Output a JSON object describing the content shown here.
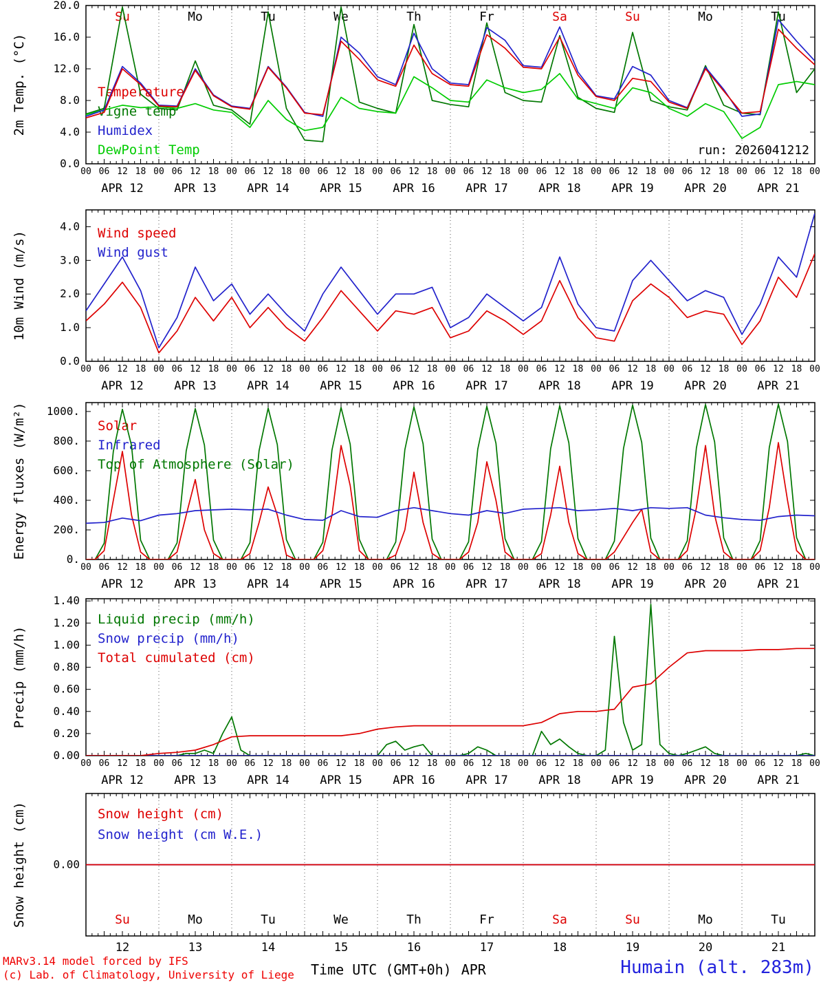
{
  "meta": {
    "run_label": "run: 2026041212"
  },
  "x_axis": {
    "hour_cycle": [
      "00",
      "06",
      "12",
      "18"
    ],
    "dates": [
      "APR 12",
      "APR 13",
      "APR 14",
      "APR 15",
      "APR 16",
      "APR 17",
      "APR 18",
      "APR 19",
      "APR 20",
      "APR 21"
    ],
    "day_numbers": [
      "12",
      "13",
      "14",
      "15",
      "16",
      "17",
      "18",
      "19",
      "20",
      "21"
    ]
  },
  "day_labels": [
    {
      "text": "Su",
      "color": "#dd0000"
    },
    {
      "text": "Mo",
      "color": "#000000"
    },
    {
      "text": "Tu",
      "color": "#000000"
    },
    {
      "text": "We",
      "color": "#000000"
    },
    {
      "text": "Th",
      "color": "#000000"
    },
    {
      "text": "Fr",
      "color": "#000000"
    },
    {
      "text": "Sa",
      "color": "#dd0000"
    },
    {
      "text": "Su",
      "color": "#dd0000"
    },
    {
      "text": "Mo",
      "color": "#000000"
    },
    {
      "text": "Tu",
      "color": "#000000"
    }
  ],
  "footer": {
    "left1": "MARv3.14 model forced by IFS",
    "left2": "(c) Lab. of Climatology, University of Liege",
    "center": "Time UTC (GMT+0h)",
    "center_apr": "APR",
    "station": "Humain (alt. 283m)"
  },
  "chart_data": [
    {
      "type": "line",
      "ylabel": "2m Temp. (°C)",
      "ylim": [
        0,
        20
      ],
      "xlim": [
        0,
        240
      ],
      "yticks": [
        0,
        4,
        8,
        12,
        16,
        20
      ],
      "ytick_labels": [
        "0.0",
        "4.0",
        "8.0",
        "12.0",
        "16.0",
        "20.0"
      ],
      "legend": [
        {
          "label": "Temperature",
          "color": "#dd0000"
        },
        {
          "label": "Vigne temp",
          "color": "#007700"
        },
        {
          "label": "Humidex",
          "color": "#2222cc"
        },
        {
          "label": "DewPoint Temp",
          "color": "#00cc00"
        }
      ],
      "annotations": [
        {
          "text": "run: 2026041212",
          "color": "#000000"
        }
      ],
      "series": [
        {
          "name": "Vigne temp",
          "color": "#007700",
          "x_start": 0,
          "x_step": 6,
          "y": [
            6.3,
            7.0,
            19.8,
            8.8,
            7.0,
            6.8,
            13.0,
            7.4,
            6.8,
            5.0,
            19.2,
            7.0,
            3.0,
            2.8,
            19.8,
            7.8,
            7.0,
            6.4,
            17.6,
            8.0,
            7.5,
            7.2,
            17.8,
            9.0,
            8.0,
            7.8,
            16.2,
            8.4,
            7.0,
            6.5,
            16.6,
            8.0,
            7.2,
            6.8,
            12.4,
            7.4,
            6.4,
            6.2,
            19.2,
            9.0,
            12.0
          ]
        },
        {
          "name": "DewPoint Temp",
          "color": "#00cc00",
          "x_start": 0,
          "x_step": 6,
          "y": [
            6.2,
            6.8,
            7.4,
            7.1,
            7.2,
            7.0,
            7.6,
            6.8,
            6.5,
            4.6,
            8.0,
            5.6,
            4.2,
            4.6,
            8.4,
            7.0,
            6.6,
            6.4,
            11.0,
            9.6,
            8.0,
            7.8,
            10.6,
            9.6,
            9.0,
            9.4,
            11.4,
            8.2,
            7.6,
            7.0,
            9.6,
            9.0,
            7.0,
            6.0,
            7.6,
            6.6,
            3.2,
            4.6,
            10.0,
            10.4,
            10.0
          ]
        },
        {
          "name": "Humidex",
          "color": "#2222cc",
          "x_start": 0,
          "x_step": 6,
          "y": [
            6.0,
            6.8,
            12.3,
            10.2,
            7.4,
            7.3,
            12.0,
            8.7,
            7.3,
            7.0,
            12.3,
            9.7,
            6.5,
            6.0,
            16.0,
            14.0,
            11.0,
            10.0,
            16.5,
            12.0,
            10.2,
            10.0,
            17.2,
            15.6,
            12.4,
            12.2,
            17.3,
            11.6,
            8.6,
            8.2,
            12.3,
            11.2,
            8.0,
            7.1,
            12.2,
            9.4,
            6.0,
            6.3,
            18.2,
            15.5,
            13.0
          ]
        },
        {
          "name": "Temperature",
          "color": "#dd0000",
          "x_start": 0,
          "x_step": 6,
          "y": [
            5.8,
            6.5,
            12.0,
            10.0,
            7.3,
            7.2,
            11.8,
            8.6,
            7.2,
            6.9,
            12.2,
            9.6,
            6.4,
            6.2,
            15.5,
            13.2,
            10.6,
            9.8,
            15.0,
            11.4,
            10.0,
            9.8,
            16.3,
            14.6,
            12.2,
            12.0,
            16.0,
            11.2,
            8.5,
            8.0,
            10.8,
            10.4,
            7.8,
            7.0,
            12.0,
            9.2,
            6.4,
            6.6,
            17.0,
            14.6,
            12.5
          ]
        }
      ]
    },
    {
      "type": "line",
      "ylabel": "10m Wind (m/s)",
      "ylim": [
        0,
        4.5
      ],
      "xlim": [
        0,
        240
      ],
      "yticks": [
        0,
        1,
        2,
        3,
        4
      ],
      "ytick_labels": [
        "0.0",
        "1.0",
        "2.0",
        "3.0",
        "4.0"
      ],
      "legend": [
        {
          "label": "Wind speed",
          "color": "#dd0000"
        },
        {
          "label": "Wind gust",
          "color": "#2222cc"
        }
      ],
      "series": [
        {
          "name": "Wind gust",
          "color": "#2222cc",
          "x_start": 0,
          "x_step": 6,
          "y": [
            1.5,
            2.3,
            3.1,
            2.1,
            0.4,
            1.3,
            2.8,
            1.8,
            2.3,
            1.4,
            2.0,
            1.4,
            0.9,
            2.0,
            2.8,
            2.1,
            1.4,
            2.0,
            2.0,
            2.2,
            1.0,
            1.3,
            2.0,
            1.6,
            1.2,
            1.6,
            3.1,
            1.7,
            1.0,
            0.9,
            2.4,
            3.0,
            2.4,
            1.8,
            2.1,
            1.9,
            0.8,
            1.7,
            3.1,
            2.5,
            4.4
          ]
        },
        {
          "name": "Wind speed",
          "color": "#dd0000",
          "x_start": 0,
          "x_step": 6,
          "y": [
            1.2,
            1.7,
            2.35,
            1.6,
            0.25,
            0.9,
            1.9,
            1.2,
            1.9,
            1.0,
            1.6,
            1.0,
            0.6,
            1.3,
            2.1,
            1.5,
            0.9,
            1.5,
            1.4,
            1.6,
            0.7,
            0.9,
            1.5,
            1.2,
            0.8,
            1.2,
            2.4,
            1.3,
            0.7,
            0.6,
            1.8,
            2.3,
            1.9,
            1.3,
            1.5,
            1.4,
            0.5,
            1.2,
            2.5,
            1.9,
            3.2
          ]
        }
      ]
    },
    {
      "type": "line",
      "ylabel": "Energy fluxes (W/m²)",
      "ylim": [
        0,
        1060
      ],
      "xlim": [
        0,
        240
      ],
      "yticks": [
        0,
        200,
        400,
        600,
        800,
        1000
      ],
      "ytick_labels": [
        "0.",
        "200.",
        "400.",
        "600.",
        "800.",
        "1000."
      ],
      "legend": [
        {
          "label": "Solar",
          "color": "#dd0000"
        },
        {
          "label": "Infrared",
          "color": "#2222cc"
        },
        {
          "label": "Top of Atmosphere (Solar)",
          "color": "#007700"
        }
      ],
      "series": [
        {
          "name": "Top of Atmosphere (Solar)",
          "color": "#007700",
          "x_start": 0,
          "x_step": 3,
          "y": [
            0,
            0,
            110,
            730,
            1015,
            770,
            130,
            0,
            0,
            0,
            112,
            733,
            1019,
            773,
            132,
            0,
            0,
            0,
            114,
            736,
            1023,
            776,
            134,
            0,
            0,
            0,
            116,
            739,
            1027,
            779,
            136,
            0,
            0,
            0,
            118,
            742,
            1031,
            782,
            138,
            0,
            0,
            0,
            120,
            745,
            1035,
            785,
            140,
            0,
            0,
            0,
            122,
            748,
            1039,
            788,
            142,
            0,
            0,
            0,
            124,
            751,
            1043,
            791,
            144,
            0,
            0,
            0,
            126,
            754,
            1047,
            794,
            146,
            0,
            0,
            0,
            128,
            757,
            1050,
            797,
            148,
            0,
            0
          ]
        },
        {
          "name": "Solar",
          "color": "#dd0000",
          "x_start": 0,
          "x_step": 3,
          "y": [
            0,
            0,
            60,
            400,
            730,
            300,
            50,
            0,
            0,
            0,
            50,
            300,
            540,
            200,
            40,
            0,
            0,
            0,
            40,
            250,
            490,
            300,
            30,
            0,
            0,
            0,
            60,
            300,
            770,
            500,
            60,
            0,
            0,
            0,
            30,
            200,
            590,
            250,
            40,
            0,
            0,
            0,
            50,
            250,
            660,
            400,
            50,
            0,
            0,
            0,
            40,
            300,
            630,
            250,
            40,
            0,
            0,
            0,
            50,
            150,
            250,
            340,
            50,
            0,
            0,
            0,
            60,
            350,
            770,
            300,
            50,
            0,
            0,
            0,
            60,
            350,
            790,
            400,
            60,
            0,
            0
          ]
        },
        {
          "name": "Infrared",
          "color": "#2222cc",
          "x_start": 0,
          "x_step": 6,
          "y": [
            245,
            250,
            280,
            262,
            300,
            310,
            330,
            335,
            340,
            335,
            340,
            300,
            270,
            265,
            330,
            290,
            285,
            330,
            350,
            330,
            310,
            300,
            330,
            312,
            340,
            345,
            350,
            330,
            335,
            345,
            330,
            350,
            345,
            350,
            300,
            282,
            270,
            265,
            290,
            300,
            295
          ]
        }
      ]
    },
    {
      "type": "line",
      "ylabel": "Precip (mm/h)",
      "ylim": [
        0,
        1.42
      ],
      "xlim": [
        0,
        240
      ],
      "yticks": [
        0,
        0.2,
        0.4,
        0.6,
        0.8,
        1.0,
        1.2,
        1.4
      ],
      "ytick_labels": [
        "0.00",
        "0.20",
        "0.40",
        "0.60",
        "0.80",
        "1.00",
        "1.20",
        "1.40"
      ],
      "legend": [
        {
          "label": "Liquid precip (mm/h)",
          "color": "#007700"
        },
        {
          "label": "Snow precip (mm/h)",
          "color": "#2222cc"
        },
        {
          "label": "Total cumulated (cm)",
          "color": "#dd0000"
        }
      ],
      "series": [
        {
          "name": "Liquid precip (mm/h)",
          "color": "#007700",
          "x_start": 0,
          "x_step": 3,
          "y": [
            0,
            0,
            0,
            0,
            0,
            0,
            0,
            0,
            0,
            0,
            0,
            0.02,
            0.02,
            0.05,
            0.02,
            0.2,
            0.35,
            0.05,
            0,
            0,
            0,
            0,
            0,
            0,
            0,
            0,
            0,
            0,
            0,
            0,
            0,
            0,
            0,
            0.1,
            0.13,
            0.05,
            0.08,
            0.1,
            0,
            0,
            0,
            0,
            0.02,
            0.08,
            0.05,
            0,
            0,
            0,
            0,
            0,
            0.22,
            0.1,
            0.15,
            0.08,
            0.02,
            0,
            0,
            0.05,
            1.08,
            0.3,
            0.05,
            0.1,
            1.37,
            0.1,
            0.02,
            0,
            0.02,
            0.05,
            0.08,
            0.02,
            0,
            0,
            0,
            0,
            0,
            0,
            0,
            0,
            0,
            0.02,
            0
          ]
        },
        {
          "name": "Snow precip (mm/h)",
          "color": "#2222cc",
          "x_start": 0,
          "x_step": 120,
          "y": [
            0,
            0,
            0
          ]
        },
        {
          "name": "Total cumulated (cm)",
          "color": "#dd0000",
          "x_start": 0,
          "x_step": 6,
          "y": [
            0,
            0,
            0,
            0,
            0.02,
            0.03,
            0.05,
            0.1,
            0.17,
            0.18,
            0.18,
            0.18,
            0.18,
            0.18,
            0.18,
            0.2,
            0.24,
            0.26,
            0.27,
            0.27,
            0.27,
            0.27,
            0.27,
            0.27,
            0.27,
            0.3,
            0.38,
            0.4,
            0.4,
            0.42,
            0.62,
            0.65,
            0.8,
            0.93,
            0.95,
            0.95,
            0.95,
            0.96,
            0.96,
            0.97,
            0.97
          ]
        }
      ]
    },
    {
      "type": "line",
      "ylabel": "Snow height (cm)",
      "ylim": [
        -1,
        1
      ],
      "xlim": [
        0,
        240
      ],
      "yticks": [
        0
      ],
      "ytick_labels": [
        "0.00"
      ],
      "legend": [
        {
          "label": "Snow height (cm)",
          "color": "#dd0000"
        },
        {
          "label": "Snow height (cm W.E.)",
          "color": "#2222cc"
        }
      ],
      "series": [
        {
          "name": "Snow height (cm W.E.)",
          "color": "#2222cc",
          "x_start": 0,
          "x_step": 240,
          "y": [
            0,
            0
          ]
        },
        {
          "name": "Snow height (cm)",
          "color": "#dd0000",
          "x_start": 0,
          "x_step": 240,
          "y": [
            0,
            0
          ]
        }
      ]
    }
  ]
}
